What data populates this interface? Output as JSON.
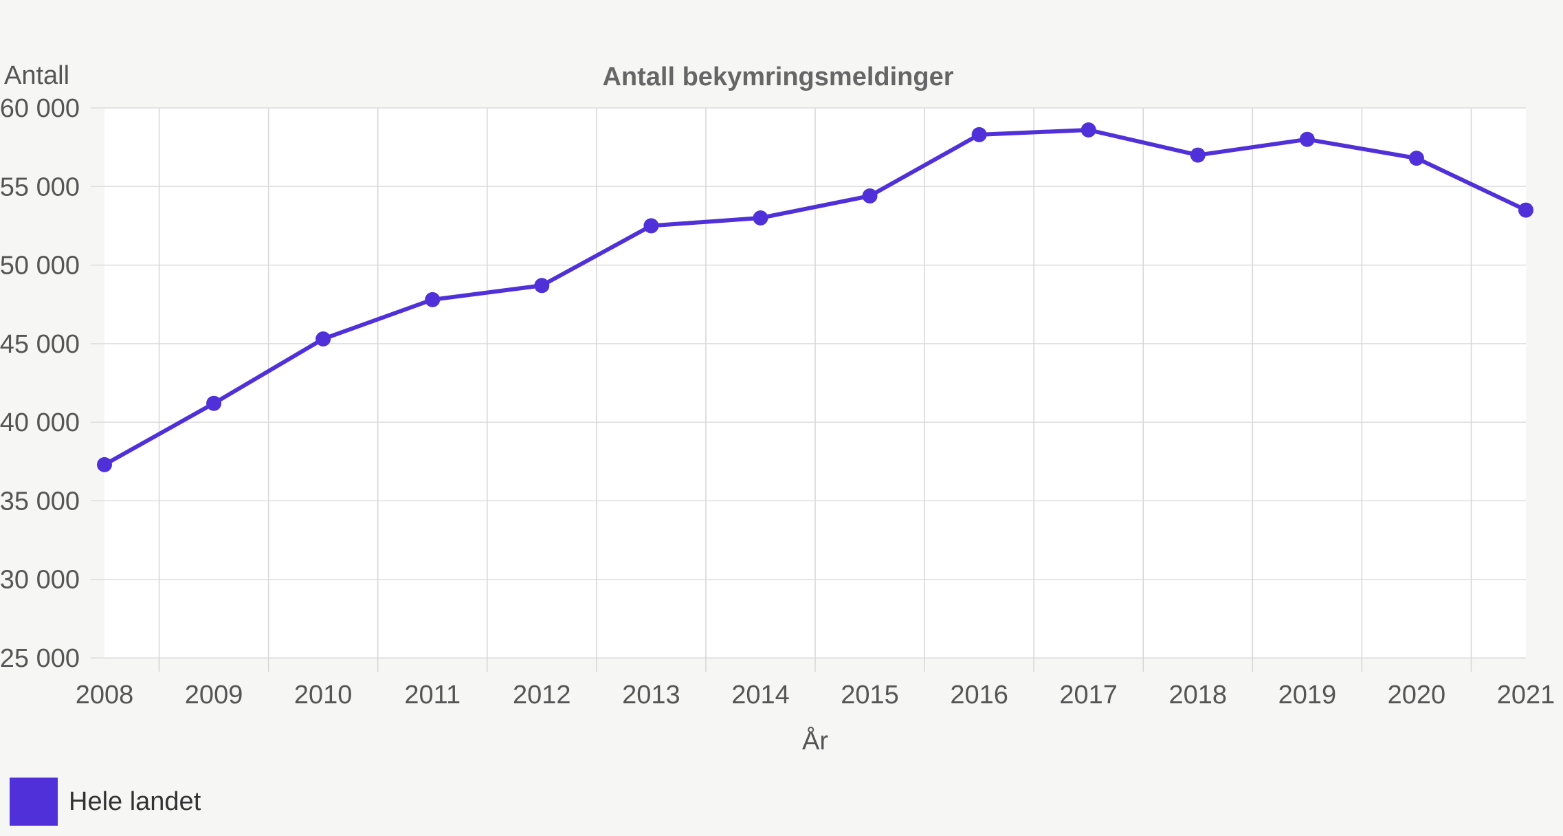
{
  "chart_data": {
    "type": "line",
    "title": "Antall bekymringsmeldinger",
    "xlabel": "År",
    "ylabel": "Antall",
    "x": [
      2008,
      2009,
      2010,
      2011,
      2012,
      2013,
      2014,
      2015,
      2016,
      2017,
      2018,
      2019,
      2020,
      2021
    ],
    "x_tick_labels": [
      "2008",
      "2009",
      "2010",
      "2011",
      "2012",
      "2013",
      "2014",
      "2015",
      "2016",
      "2017",
      "2018",
      "2019",
      "2020",
      "2021"
    ],
    "ylim": [
      25000,
      60000
    ],
    "y_ticks": [
      25000,
      30000,
      35000,
      40000,
      45000,
      50000,
      55000,
      60000
    ],
    "y_tick_labels": [
      "25 000",
      "30 000",
      "35 000",
      "40 000",
      "45 000",
      "50 000",
      "55 000",
      "60 000"
    ],
    "grid": true,
    "legend_position": "bottom-left",
    "series": [
      {
        "name": "Hele landet",
        "color": "#5030d8",
        "values": [
          37300,
          41200,
          45300,
          47800,
          48700,
          52500,
          53000,
          54400,
          58300,
          58600,
          57000,
          58000,
          56800,
          53500
        ]
      }
    ]
  }
}
